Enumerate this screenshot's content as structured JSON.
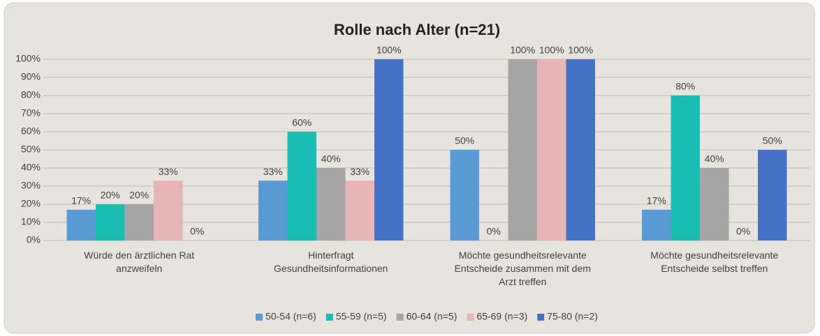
{
  "chart_data": {
    "type": "bar",
    "title": "Rolle nach Alter (n=21)",
    "categories": [
      "Würde den ärztlichen Rat\nanzweifeln",
      "Hinterfragt\nGesundheitsinformationen",
      "Möchte gesundheitsrelevante\nEntscheide zusammen mit dem\nArzt treffen",
      "Möchte gesundheitsrelevante\nEntscheide selbst treffen"
    ],
    "series": [
      {
        "name": "50-54 (n=6)",
        "color": "#5b9bd5",
        "values": [
          17,
          33,
          50,
          17
        ],
        "value_labels": [
          "17%",
          "33%",
          "50%",
          "17%"
        ]
      },
      {
        "name": "55-59 (n=5)",
        "color": "#19bdb2",
        "values": [
          20,
          60,
          0,
          80
        ],
        "value_labels": [
          "20%",
          "60%",
          "0%",
          "80%"
        ]
      },
      {
        "name": "60-64 (n=5)",
        "color": "#a5a5a5",
        "values": [
          20,
          40,
          100,
          40
        ],
        "value_labels": [
          "20%",
          "40%",
          "100%",
          "40%"
        ]
      },
      {
        "name": "65-69 (n=3)",
        "color": "#e8b5b7",
        "values": [
          33,
          33,
          100,
          0
        ],
        "value_labels": [
          "33%",
          "33%",
          "100%",
          "0%"
        ]
      },
      {
        "name": "75-80 (n=2)",
        "color": "#4472c4",
        "values": [
          0,
          100,
          100,
          50
        ],
        "value_labels": [
          "0%",
          "100%",
          "100%",
          "50%"
        ]
      }
    ],
    "ylim": [
      0,
      100
    ],
    "yticks": [
      {
        "value": 0,
        "label": "0%"
      },
      {
        "value": 10,
        "label": "10%"
      },
      {
        "value": 20,
        "label": "20%"
      },
      {
        "value": 30,
        "label": "30%"
      },
      {
        "value": 40,
        "label": "40%"
      },
      {
        "value": 50,
        "label": "50%"
      },
      {
        "value": 60,
        "label": "60%"
      },
      {
        "value": 70,
        "label": "70%"
      },
      {
        "value": 80,
        "label": "80%"
      },
      {
        "value": 90,
        "label": "90%"
      },
      {
        "value": 100,
        "label": "100%"
      }
    ],
    "grid": true,
    "legend": "bottom"
  }
}
